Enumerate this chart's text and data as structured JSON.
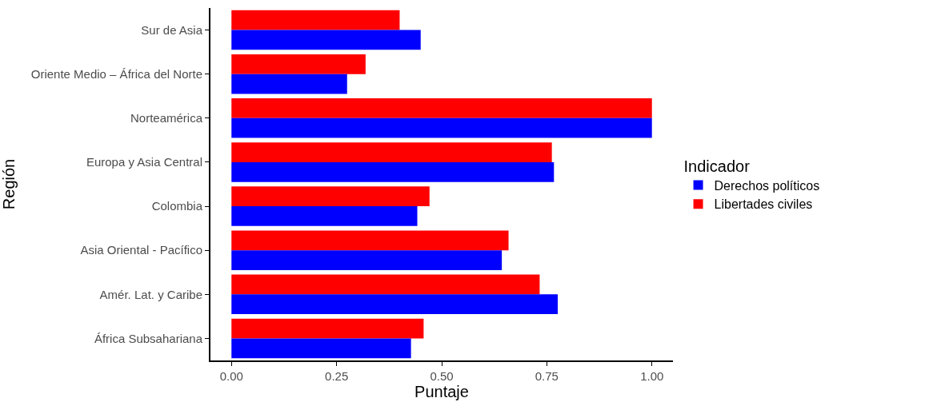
{
  "chart_data": {
    "type": "bar",
    "orientation": "horizontal",
    "xlabel": "Puntaje",
    "ylabel": "Región",
    "legend_title": "Indicador",
    "legend": "right",
    "categories": [
      "Sur de Asia",
      "Oriente Medio – África del Norte",
      "Norteamérica",
      "Europa y Asia Central",
      "Colombia",
      "Asia Oriental - Pacífico",
      "Amér. Lat. y Caribe",
      "África Subsahariana"
    ],
    "series": [
      {
        "name": "Derechos políticos",
        "color": "#0000ff",
        "values": [
          0.45,
          0.275,
          1.0,
          0.767,
          0.442,
          0.643,
          0.776,
          0.427
        ]
      },
      {
        "name": "Libertades civiles",
        "color": "#ff0000",
        "values": [
          0.4,
          0.319,
          1.0,
          0.762,
          0.471,
          0.659,
          0.733,
          0.457
        ]
      }
    ],
    "xlim": [
      -0.05,
      1.05
    ],
    "xticks": [
      {
        "value": 0,
        "label": "0.00"
      },
      {
        "value": 0.25,
        "label": "0.25"
      },
      {
        "value": 0.5,
        "label": "0.50"
      },
      {
        "value": 0.75,
        "label": "0.75"
      },
      {
        "value": 1,
        "label": "1.00"
      }
    ]
  }
}
